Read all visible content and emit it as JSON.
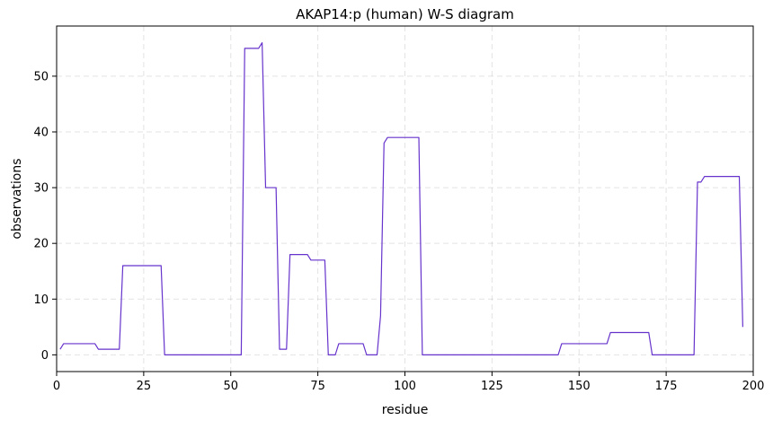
{
  "chart_data": {
    "type": "line",
    "title": "AKAP14:p (human) W-S diagram",
    "xlabel": "residue",
    "ylabel": "observations",
    "xlim": [
      0,
      200
    ],
    "ylim": [
      -3,
      59
    ],
    "xticks": [
      0,
      25,
      50,
      75,
      100,
      125,
      150,
      175,
      200
    ],
    "yticks": [
      0,
      10,
      20,
      30,
      40,
      50
    ],
    "grid": true,
    "series_color": "#6633cc",
    "series": [
      {
        "x": [
          1,
          2,
          11,
          12,
          18,
          19,
          30,
          31,
          53,
          54,
          58,
          59,
          60,
          63,
          64,
          66,
          67,
          72,
          73,
          77,
          78,
          80,
          81,
          88,
          89,
          92,
          93,
          94,
          95,
          104,
          105,
          144,
          145,
          158,
          159,
          170,
          171,
          183,
          184,
          185,
          186,
          196,
          197
        ],
        "y": [
          1,
          2,
          2,
          1,
          1,
          16,
          16,
          0,
          0,
          55,
          55,
          56,
          30,
          30,
          1,
          1,
          18,
          18,
          17,
          17,
          0,
          0,
          2,
          2,
          0,
          0,
          7,
          38,
          39,
          39,
          0,
          0,
          2,
          2,
          4,
          4,
          0,
          0,
          31,
          31,
          32,
          32,
          5
        ]
      }
    ]
  }
}
